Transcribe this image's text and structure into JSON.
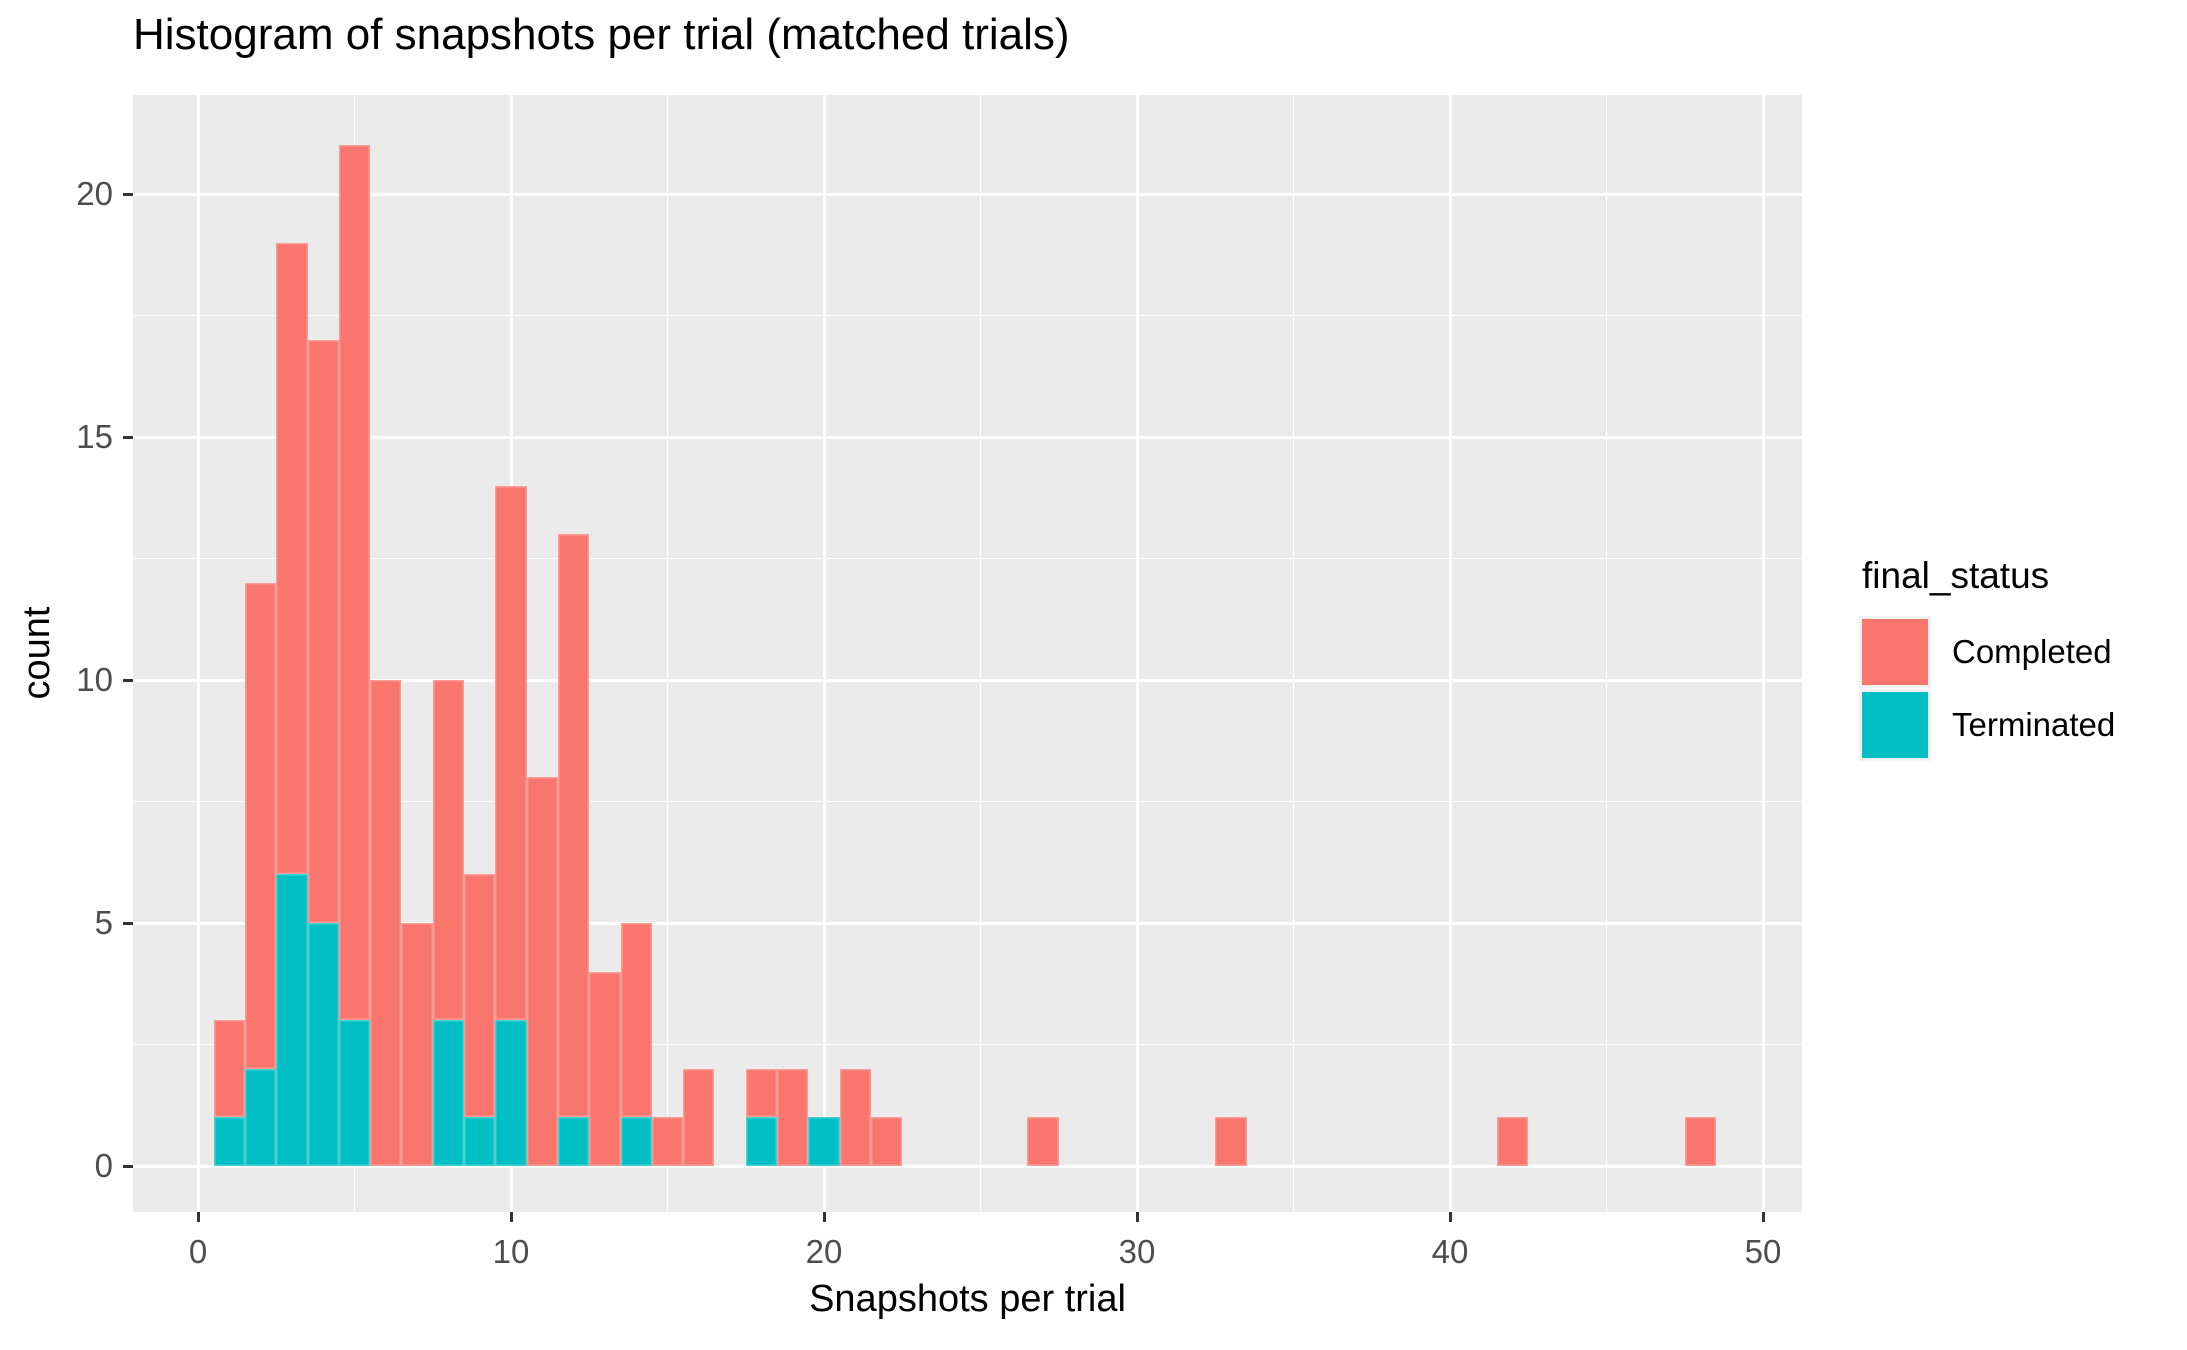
{
  "title": "Histogram of snapshots per trial (matched trials)",
  "chart_data": {
    "type": "bar",
    "subtype": "stacked-histogram",
    "title": "Histogram of snapshots per trial (matched trials)",
    "xlabel": "Snapshots per trial",
    "ylabel": "count",
    "x_ticks": [
      0,
      10,
      20,
      30,
      40,
      50
    ],
    "y_ticks": [
      0,
      5,
      10,
      15,
      20
    ],
    "x_minor": [
      5,
      15,
      25,
      35,
      45
    ],
    "y_minor": [
      2.5,
      7.5,
      12.5,
      17.5
    ],
    "xlim": [
      -2.1,
      51.3
    ],
    "ylim": [
      -1.05,
      22.05
    ],
    "binwidth": 1,
    "grid": "white major and minor gridlines on gray panel",
    "legend_position": "right",
    "legend": {
      "title": "final_status",
      "entries": [
        {
          "label": "Completed",
          "color": "#F8766D"
        },
        {
          "label": "Terminated",
          "color": "#00BFC4"
        }
      ]
    },
    "bins": [
      {
        "x": 1,
        "completed": 2,
        "terminated": 1
      },
      {
        "x": 2,
        "completed": 10,
        "terminated": 2
      },
      {
        "x": 3,
        "completed": 13,
        "terminated": 6
      },
      {
        "x": 4,
        "completed": 12,
        "terminated": 5
      },
      {
        "x": 5,
        "completed": 18,
        "terminated": 3
      },
      {
        "x": 6,
        "completed": 10,
        "terminated": 0
      },
      {
        "x": 7,
        "completed": 5,
        "terminated": 0
      },
      {
        "x": 8,
        "completed": 7,
        "terminated": 3
      },
      {
        "x": 9,
        "completed": 5,
        "terminated": 1
      },
      {
        "x": 10,
        "completed": 11,
        "terminated": 3
      },
      {
        "x": 11,
        "completed": 8,
        "terminated": 0
      },
      {
        "x": 12,
        "completed": 12,
        "terminated": 1
      },
      {
        "x": 13,
        "completed": 4,
        "terminated": 0
      },
      {
        "x": 14,
        "completed": 4,
        "terminated": 1
      },
      {
        "x": 15,
        "completed": 1,
        "terminated": 0
      },
      {
        "x": 16,
        "completed": 2,
        "terminated": 0
      },
      {
        "x": 18,
        "completed": 1,
        "terminated": 1
      },
      {
        "x": 19,
        "completed": 2,
        "terminated": 0
      },
      {
        "x": 20,
        "completed": 0,
        "terminated": 1
      },
      {
        "x": 21,
        "completed": 2,
        "terminated": 0
      },
      {
        "x": 22,
        "completed": 1,
        "terminated": 0
      },
      {
        "x": 27,
        "completed": 1,
        "terminated": 0
      },
      {
        "x": 33,
        "completed": 1,
        "terminated": 0
      },
      {
        "x": 42,
        "completed": 1,
        "terminated": 0
      },
      {
        "x": 48,
        "completed": 1,
        "terminated": 0
      }
    ]
  },
  "colors": {
    "panel_bg": "#EBEBEB",
    "grid": "#FFFFFF",
    "tick": "#333333",
    "tick_label": "#4D4D4D",
    "text": "#000000",
    "completed": "#F8766D",
    "terminated": "#00BFC4"
  }
}
